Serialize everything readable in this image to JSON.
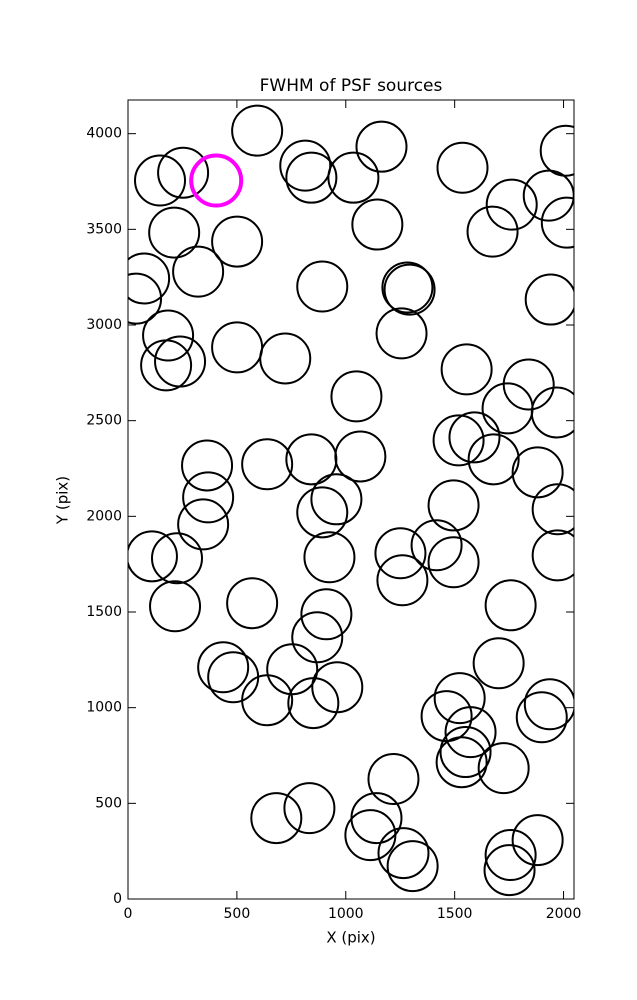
{
  "chart_data": {
    "type": "scatter",
    "title": "FWHM of PSF sources",
    "x_label": "X (pix)",
    "y_label": "Y (pix)",
    "xlim": [
      0,
      2048
    ],
    "ylim": [
      0,
      4176
    ],
    "xticks": [
      0,
      500,
      1000,
      1500,
      2000
    ],
    "yticks": [
      0,
      500,
      1000,
      1500,
      2000,
      2500,
      3000,
      3500,
      4000
    ],
    "grid": false,
    "series": [
      {
        "color": "#000000",
        "linewidth": 2,
        "x": [
          593,
          147,
          253,
          814,
          842,
          1035,
          1164,
          1536,
          1762,
          1932,
          2010,
          2015,
          1674,
          1145,
          212,
          501,
          322,
          74,
          37,
          892,
          1283,
          1293,
          1256,
          184,
          175,
          239,
          501,
          722,
          1941,
          1049,
          1555,
          1840,
          1743,
          1969,
          1518,
          1591,
          1679,
          1881,
          1973,
          1973,
          1067,
          842,
          639,
          363,
          368,
          345,
          957,
          892,
          1495,
          1417,
          1495,
          1251,
          1260,
          110,
          225,
          925,
          1757,
          216,
          570,
          911,
          869,
          437,
          483,
          754,
          639,
          851,
          961,
          1702,
          1523,
          1937,
          1900,
          1463,
          1573,
          1532,
          1550,
          1725,
          1219,
          1141,
          1113,
          1265,
          1307,
          833,
          681,
          1881,
          1757,
          1752
        ],
        "y": [
          4016,
          3755,
          3796,
          3833,
          3770,
          3770,
          3932,
          3822,
          3629,
          3676,
          3911,
          3535,
          3488,
          3525,
          3483,
          3436,
          3279,
          3243,
          3138,
          3201,
          3196,
          3185,
          2956,
          2945,
          2789,
          2809,
          2883,
          2825,
          3133,
          2627,
          2768,
          2689,
          2564,
          2543,
          2397,
          2413,
          2298,
          2230,
          2037,
          1796,
          2313,
          2298,
          2272,
          2266,
          2099,
          1958,
          2089,
          2021,
          2057,
          1849,
          1760,
          1807,
          1666,
          1791,
          1781,
          1786,
          1535,
          1530,
          1546,
          1488,
          1368,
          1211,
          1159,
          1201,
          1039,
          1024,
          1107,
          1232,
          1050,
          1018,
          950,
          956,
          872,
          715,
          768,
          684,
          627,
          423,
          334,
          240,
          172,
          475,
          423,
          308,
          230,
          151
        ]
      },
      {
        "color": "#ff00ff",
        "linewidth": 4,
        "x": [
          405
        ],
        "y": [
          3755
        ]
      }
    ]
  }
}
